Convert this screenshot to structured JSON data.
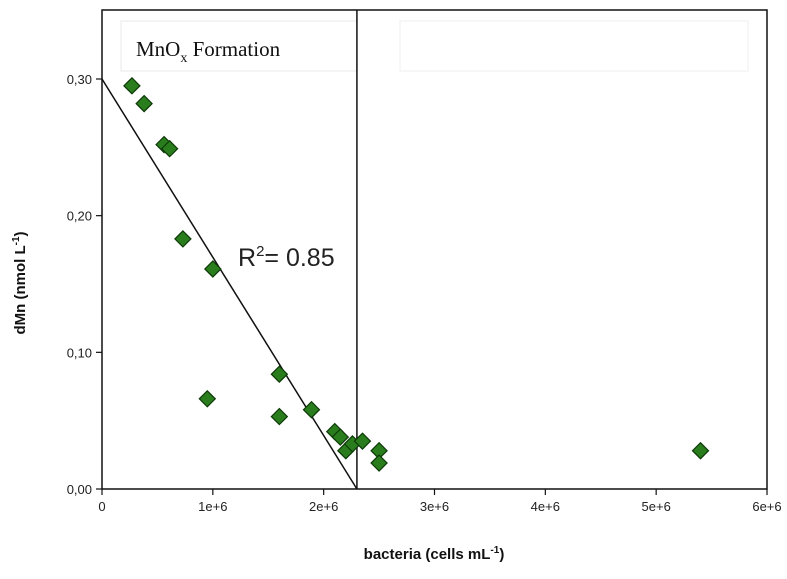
{
  "chart_data": {
    "type": "scatter",
    "title": "",
    "xlabel": {
      "main": "bacteria (cells mL",
      "sup": "-1",
      "end": ")"
    },
    "ylabel": {
      "main": "dMn (nmol L",
      "sup": "-1",
      "end": ")"
    },
    "xlim": [
      0,
      6000000
    ],
    "ylim": [
      0,
      0.3
    ],
    "x_ticks": [
      {
        "value": 0,
        "label": "0"
      },
      {
        "value": 1000000,
        "label": "1e+6"
      },
      {
        "value": 2000000,
        "label": "2e+6"
      },
      {
        "value": 3000000,
        "label": "3e+6"
      },
      {
        "value": 4000000,
        "label": "4e+6"
      },
      {
        "value": 5000000,
        "label": "5e+6"
      },
      {
        "value": 6000000,
        "label": "6e+6"
      }
    ],
    "y_ticks": [
      {
        "value": 0,
        "label": "0,00"
      },
      {
        "value": 0.1,
        "label": "0,10"
      },
      {
        "value": 0.2,
        "label": "0,20"
      },
      {
        "value": 0.3,
        "label": "0,30"
      }
    ],
    "grid": false,
    "marker_color": "#2a7d1d",
    "marker_stroke": "#0d3a08",
    "points": [
      {
        "x": 270000,
        "y": 0.295
      },
      {
        "x": 380000,
        "y": 0.282
      },
      {
        "x": 560000,
        "y": 0.252
      },
      {
        "x": 610000,
        "y": 0.249
      },
      {
        "x": 730000,
        "y": 0.183
      },
      {
        "x": 1000000,
        "y": 0.161
      },
      {
        "x": 950000,
        "y": 0.066
      },
      {
        "x": 1600000,
        "y": 0.084
      },
      {
        "x": 1600000,
        "y": 0.053
      },
      {
        "x": 1890000,
        "y": 0.058
      },
      {
        "x": 2100000,
        "y": 0.042
      },
      {
        "x": 2150000,
        "y": 0.038
      },
      {
        "x": 2200000,
        "y": 0.028
      },
      {
        "x": 2260000,
        "y": 0.033
      },
      {
        "x": 2350000,
        "y": 0.035
      },
      {
        "x": 2500000,
        "y": 0.028
      },
      {
        "x": 2500000,
        "y": 0.019
      },
      {
        "x": 5400000,
        "y": 0.028
      }
    ],
    "regression_line": {
      "x": [
        0,
        2300000
      ],
      "y": [
        0.3,
        0
      ]
    },
    "divider_x": 2300000,
    "annotations": {
      "region_label": {
        "main": "MnO",
        "sub": "x",
        "end": " Formation"
      },
      "r_squared": {
        "main": "R",
        "sup": "2",
        "end": "= 0.85"
      }
    }
  }
}
